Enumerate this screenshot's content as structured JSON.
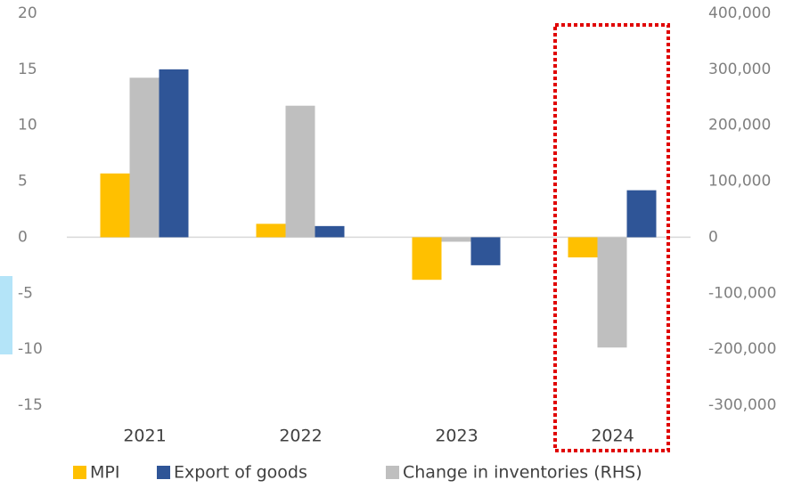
{
  "chart_data": {
    "type": "bar",
    "categories": [
      "2021",
      "2022",
      "2023",
      "2024"
    ],
    "series": [
      {
        "name": "MPI",
        "color": "#ffc000",
        "values": [
          5.7,
          1.2,
          -3.8,
          -1.8
        ]
      },
      {
        "name": "Export of goods",
        "color": "#2f5597",
        "values": [
          15,
          1.0,
          -2.5,
          4.2
        ]
      },
      {
        "name": "Change in inventories (RHS)",
        "color": "#bfbfbf",
        "axis": "y2",
        "values": [
          285000,
          235000,
          -8000,
          -197000
        ]
      }
    ],
    "ylim": [
      -15,
      20
    ],
    "yticks": [
      -15,
      -10,
      -5,
      0,
      5,
      10,
      15,
      20
    ],
    "y2lim": [
      -300000,
      400000
    ],
    "y2ticks": [
      {
        "value": -300000,
        "label": "-300,000"
      },
      {
        "value": -200000,
        "label": "-200,000"
      },
      {
        "value": -100000,
        "label": "-100,000"
      },
      0,
      {
        "value": 100000,
        "label": "100,000"
      },
      {
        "value": 200000,
        "label": "200,000"
      },
      {
        "value": 300000,
        "label": "300,000"
      },
      {
        "value": 400000,
        "label": "400,000"
      }
    ],
    "legend": "bottom"
  }
}
